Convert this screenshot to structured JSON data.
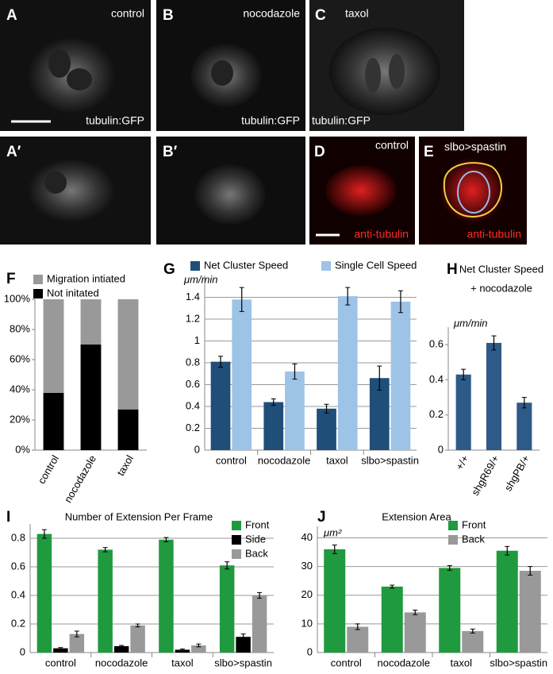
{
  "images": [
    {
      "label": "A",
      "caption": "control",
      "marker": "tubulin:GFP"
    },
    {
      "label": "B",
      "caption": "nocodazole",
      "marker": "tubulin:GFP"
    },
    {
      "label": "C",
      "caption": "taxol",
      "marker": "tubulin:GFP"
    },
    {
      "label": "A′"
    },
    {
      "label": "B′"
    },
    {
      "label": "D",
      "caption": "control",
      "marker": "anti-tubulin"
    },
    {
      "label": "E",
      "caption": "slbo>spastin",
      "marker": "anti-tubulin"
    }
  ],
  "chart_data": [
    {
      "type": "stacked_bar",
      "panel": "F",
      "categories": [
        "control",
        "nocodazole",
        "taxol"
      ],
      "series": [
        {
          "name": "Not initated",
          "color": "#000000",
          "values": [
            38,
            70,
            27
          ]
        },
        {
          "name": "Migration intiated",
          "color": "#999999",
          "values": [
            62,
            30,
            73
          ]
        }
      ],
      "ylim": [
        0,
        100
      ],
      "yticks": [
        {
          "value": 0,
          "label": "0%"
        },
        {
          "value": 20,
          "label": "20%"
        },
        {
          "value": 40,
          "label": "40%"
        },
        {
          "value": 60,
          "label": "60%"
        },
        {
          "value": 80,
          "label": "80%"
        },
        {
          "value": 100,
          "label": "100%"
        }
      ],
      "grid": false,
      "legend": "top",
      "rotate_x_labels": true
    },
    {
      "type": "bar",
      "panel": "G",
      "y_label": "μm/min",
      "categories": [
        "control",
        "nocodazole",
        "taxol",
        "slbo>spastin"
      ],
      "series": [
        {
          "name": "Net Cluster Speed",
          "color": "#1f4e79",
          "values": [
            0.81,
            0.44,
            0.38,
            0.66
          ],
          "errors": [
            0.05,
            0.03,
            0.04,
            0.11
          ]
        },
        {
          "name": "Single Cell Speed",
          "color": "#9dc3e6",
          "values": [
            1.38,
            0.72,
            1.41,
            1.36
          ],
          "errors": [
            0.11,
            0.07,
            0.08,
            0.1
          ]
        }
      ],
      "ylim": [
        0,
        1.6
      ],
      "yticks": [
        0,
        0.2,
        0.4,
        0.6,
        0.8,
        1,
        1.2,
        1.4
      ],
      "grid": true,
      "legend": "top",
      "rotate_x_labels": false
    },
    {
      "type": "bar",
      "panel": "H",
      "title": "Net Cluster Speed",
      "subtitle": "+ nocodazole",
      "y_label": "μm/min",
      "categories": [
        "+/+",
        "shgR69/+",
        "shgPB/+"
      ],
      "series": [
        {
          "name": "Net Cluster Speed",
          "color": "#2e5a88",
          "values": [
            0.43,
            0.61,
            0.27
          ],
          "errors": [
            0.03,
            0.04,
            0.03
          ]
        }
      ],
      "ylim": [
        0,
        0.7
      ],
      "yticks": [
        0,
        0.2,
        0.4,
        0.6
      ],
      "grid": false,
      "legend": "none",
      "rotate_x_labels": true
    },
    {
      "type": "bar",
      "panel": "I",
      "title": "Number of Extension Per Frame",
      "categories": [
        "control",
        "nocodazole",
        "taxol",
        "slbo>spastin"
      ],
      "series": [
        {
          "name": "Front",
          "color": "#1f9a3e",
          "values": [
            0.83,
            0.72,
            0.79,
            0.61
          ],
          "errors": [
            0.03,
            0.015,
            0.015,
            0.025
          ]
        },
        {
          "name": "Side",
          "color": "#000000",
          "values": [
            0.03,
            0.045,
            0.02,
            0.11
          ],
          "errors": [
            0.005,
            0.005,
            0.005,
            0.02
          ]
        },
        {
          "name": "Back",
          "color": "#999999",
          "values": [
            0.13,
            0.19,
            0.05,
            0.4
          ],
          "errors": [
            0.02,
            0.01,
            0.01,
            0.02
          ]
        }
      ],
      "ylim": [
        0,
        0.9
      ],
      "yticks": [
        0,
        0.2,
        0.4,
        0.6,
        0.8
      ],
      "grid": true,
      "legend": "upper right",
      "rotate_x_labels": false
    },
    {
      "type": "bar",
      "panel": "J",
      "title": "Extension Area",
      "y_label": "μm²",
      "categories": [
        "control",
        "nocodazole",
        "taxol",
        "slbo>spastin"
      ],
      "series": [
        {
          "name": "Front",
          "color": "#1f9a3e",
          "values": [
            36,
            23,
            29.5,
            35.5
          ],
          "errors": [
            1.5,
            0.5,
            0.8,
            1.5
          ]
        },
        {
          "name": "Back",
          "color": "#999999",
          "values": [
            9,
            14,
            7.5,
            28.5
          ],
          "errors": [
            1,
            0.8,
            0.7,
            1.5
          ]
        }
      ],
      "ylim": [
        0,
        44
      ],
      "yticks": [
        0,
        10,
        20,
        30,
        40
      ],
      "grid": true,
      "legend": "upper right",
      "rotate_x_labels": false
    }
  ]
}
